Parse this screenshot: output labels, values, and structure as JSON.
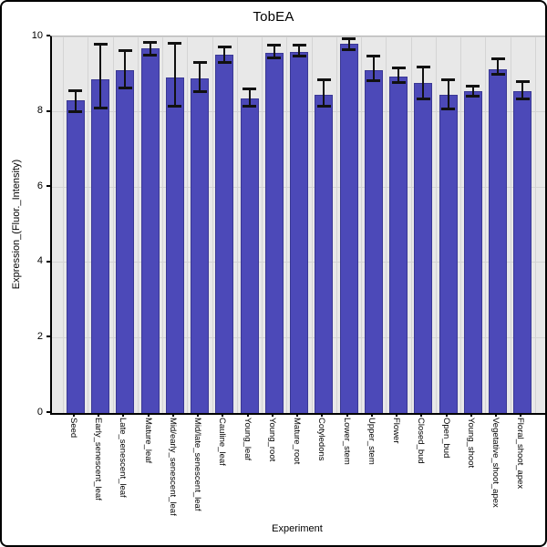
{
  "figure": {
    "title": "TobEA"
  },
  "chart_data": {
    "type": "bar",
    "title": "TobEA",
    "xlabel": "Experiment",
    "ylabel": "Expression_(Fluor._Intensity)",
    "ylim": [
      0,
      10
    ],
    "yticks": [
      0,
      2,
      4,
      6,
      8,
      10
    ],
    "grid": true,
    "legend": null,
    "colors": {
      "bar_fill": "#4c49b8",
      "bar_edge": "#3a3894",
      "plot_bg": "#e8e8e8",
      "grid_line": "#d4d4d4",
      "error_bar": "#111111",
      "figure_bg": "#ffffff"
    },
    "categories": [
      "Seed",
      "Early_senescent_leaf",
      "Late_senescent_leaf",
      "Mature_leaf",
      "Mid/early_senescent_leaf",
      "Mid/late_senescent_leaf",
      "Cauline_leaf",
      "Young_leaf",
      "Young_root",
      "Mature_root",
      "Cotyledons",
      "Lower_stem",
      "Upper_stem",
      "Flower",
      "Closed_bud",
      "Open_bud",
      "Young_shoot",
      "Vegetative_shoot_apex",
      "Floral_shoot_apex"
    ],
    "values": [
      8.3,
      8.86,
      9.1,
      9.69,
      8.92,
      8.89,
      9.51,
      8.35,
      9.56,
      9.6,
      8.46,
      9.81,
      9.1,
      8.94,
      8.76,
      8.46,
      8.55,
      9.14,
      8.55
    ],
    "error_low": [
      8.01,
      8.09,
      8.62,
      9.5,
      8.15,
      8.53,
      9.32,
      8.15,
      9.43,
      9.47,
      8.15,
      9.66,
      8.82,
      8.77,
      8.34,
      8.07,
      8.42,
      9.0,
      8.34
    ],
    "error_high": [
      8.57,
      9.79,
      9.62,
      9.85,
      9.81,
      9.31,
      9.71,
      8.6,
      9.77,
      9.78,
      8.86,
      9.94,
      9.47,
      9.16,
      9.2,
      8.86,
      8.69,
      9.4,
      8.8
    ]
  }
}
